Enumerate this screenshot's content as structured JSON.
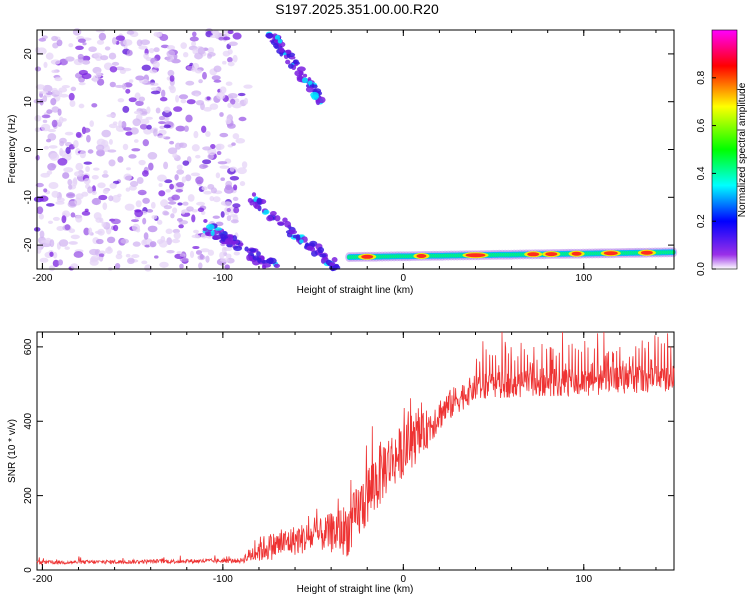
{
  "title": "S197.2025.351.00.00.R20",
  "chart_data": [
    {
      "type": "heatmap",
      "name": "spectrogram",
      "xlabel": "Height of straight line (km)",
      "ylabel": "Frequency (Hz)",
      "xlim": [
        -203,
        150
      ],
      "ylim": [
        -25,
        25
      ],
      "x_ticks": [
        -200,
        -100,
        0,
        100
      ],
      "y_ticks": [
        -20,
        -10,
        0,
        10,
        20
      ],
      "colorbar": {
        "label": "Normalized spectral amplitude",
        "range": [
          0,
          1
        ],
        "ticks": [
          0.0,
          0.2,
          0.4,
          0.6,
          0.8
        ],
        "tick_labels": [
          "0.0",
          "0.2",
          "0.4",
          "0.6",
          "0.8"
        ],
        "colors": [
          "#ffffff",
          "#8a2be2",
          "#0000ff",
          "#00ffff",
          "#00ff00",
          "#ffff00",
          "#ff0000",
          "#ff00ff"
        ]
      },
      "features": {
        "noise_region_x": [
          -203,
          -92
        ],
        "main_line": {
          "x": [
            -30,
            150
          ],
          "freq": [
            -22.5,
            -21.5
          ],
          "peak_amplitude": 0.9
        },
        "descending_streaks": [
          {
            "x": [
              -110,
              -70
            ],
            "freq": [
              -16,
              -25
            ]
          },
          {
            "x": [
              -85,
              -35
            ],
            "freq": [
              -10,
              -25
            ]
          },
          {
            "x": [
              -75,
              -45
            ],
            "freq": [
              25,
              10
            ]
          }
        ]
      }
    },
    {
      "type": "line",
      "name": "snr",
      "xlabel": "Height of straight line (km)",
      "ylabel": "SNR (10 * v/v)",
      "xlim": [
        -203,
        150
      ],
      "ylim": [
        0,
        640
      ],
      "x_ticks": [
        -200,
        -100,
        0,
        100
      ],
      "y_ticks": [
        0,
        200,
        400,
        600
      ],
      "color": "#ee3333",
      "profile": [
        [
          -203,
          20
        ],
        [
          -90,
          25
        ],
        [
          -80,
          55
        ],
        [
          -60,
          80
        ],
        [
          -45,
          95
        ],
        [
          -30,
          110
        ],
        [
          -20,
          200
        ],
        [
          -10,
          280
        ],
        [
          0,
          320
        ],
        [
          10,
          360
        ],
        [
          20,
          420
        ],
        [
          30,
          460
        ],
        [
          40,
          490
        ],
        [
          60,
          500
        ],
        [
          100,
          505
        ],
        [
          150,
          520
        ]
      ],
      "noise_spread": [
        [
          -203,
          10
        ],
        [
          -90,
          12
        ],
        [
          -80,
          70
        ],
        [
          -45,
          90
        ],
        [
          -30,
          150
        ],
        [
          -15,
          180
        ],
        [
          0,
          140
        ],
        [
          20,
          90
        ],
        [
          40,
          70
        ],
        [
          150,
          80
        ]
      ]
    }
  ]
}
